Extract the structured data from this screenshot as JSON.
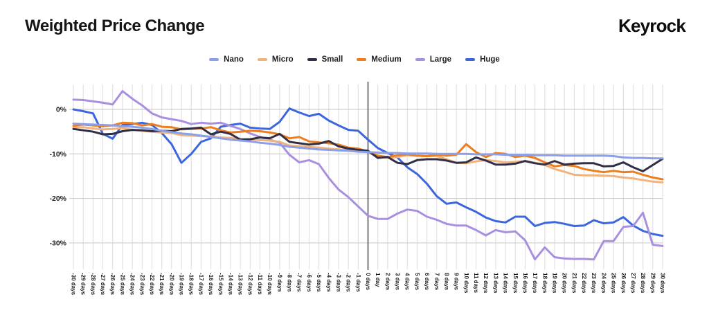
{
  "header": {
    "title": "Weighted Price Change",
    "brand": "Keyrock"
  },
  "legend": [
    {
      "label": "Nano",
      "color": "#8ba0e8"
    },
    {
      "label": "Micro",
      "color": "#f2b27c"
    },
    {
      "label": "Small",
      "color": "#312f46"
    },
    {
      "label": "Medium",
      "color": "#ee7d1e"
    },
    {
      "label": "Large",
      "color": "#a98fe0"
    },
    {
      "label": "Huge",
      "color": "#3c66dd"
    }
  ],
  "chart_data": {
    "type": "line",
    "title": "Weighted Price Change",
    "xlabel": "",
    "ylabel": "",
    "legend_position": "top-center",
    "grid": "vertical line per day; horizontal lines at y ticks",
    "y_ticks": [
      "0%",
      "-10%",
      "-20%",
      "-30%"
    ],
    "ylim": [
      -35.5,
      5.7
    ],
    "zero_marker": "0 days",
    "categories": [
      "-30 days",
      "-29 days",
      "-28 days",
      "-27 days",
      "-26 days",
      "-25 days",
      "-24 days",
      "-23 days",
      "-22 days",
      "-21 days",
      "-20 days",
      "-19 days",
      "-18 days",
      "-17 days",
      "-16 days",
      "-15 days",
      "-14 days",
      "-13 days",
      "-12 days",
      "-11 days",
      "-10 days",
      "-9 days",
      "-8 days",
      "-7 days",
      "-6 days",
      "-5 days",
      "-4 days",
      "-3 days",
      "-2 days",
      "-1 days",
      "0 days",
      "1 day",
      "2 days",
      "3 days",
      "4 days",
      "5 days",
      "6 days",
      "7 days",
      "8 days",
      "9 days",
      "10 days",
      "11 days",
      "12 days",
      "13 days",
      "14 days",
      "15 days",
      "16 days",
      "17 days",
      "18 days",
      "19 days",
      "20 days",
      "21 days",
      "22 days",
      "23 days",
      "24 days",
      "25 days",
      "26 days",
      "27 days",
      "28 days",
      "29 days",
      "30 days"
    ],
    "series": [
      {
        "name": "Huge",
        "color": "#3c66dd",
        "values": [
          0.0,
          -0.4,
          -0.9,
          -5.5,
          -6.6,
          -3.5,
          -3.3,
          -3.0,
          -3.5,
          -5.3,
          -7.8,
          -12.0,
          -10.0,
          -7.3,
          -6.5,
          -3.9,
          -3.5,
          -3.2,
          -4.1,
          -4.3,
          -4.4,
          -2.8,
          0.2,
          -0.7,
          -1.5,
          -1.0,
          -2.5,
          -3.6,
          -4.6,
          -4.8,
          -6.8,
          -8.7,
          -9.8,
          -10.8,
          -13.0,
          -14.5,
          -16.7,
          -19.5,
          -21.2,
          -20.9,
          -22.0,
          -23.0,
          -24.3,
          -25.1,
          -25.4,
          -24.1,
          -24.1,
          -26.2,
          -25.5,
          -25.3,
          -25.7,
          -26.2,
          -26.1,
          -24.9,
          -25.6,
          -25.4,
          -24.2,
          -26.1,
          -27.3,
          -28.0,
          -28.4
        ]
      },
      {
        "name": "Large",
        "color": "#a98fe0",
        "values": [
          2.2,
          2.1,
          1.8,
          1.5,
          1.1,
          4.1,
          2.4,
          0.9,
          -0.9,
          -1.8,
          -2.2,
          -2.6,
          -3.3,
          -3.0,
          -3.2,
          -3.0,
          -3.7,
          -4.4,
          -5.4,
          -6.2,
          -6.8,
          -7.5,
          -10.2,
          -11.9,
          -11.4,
          -12.3,
          -15.4,
          -18.0,
          -19.7,
          -21.8,
          -23.9,
          -24.6,
          -24.6,
          -23.4,
          -22.5,
          -22.8,
          -24.1,
          -24.8,
          -25.7,
          -26.1,
          -26.1,
          -27.1,
          -28.3,
          -27.1,
          -27.6,
          -27.4,
          -29.4,
          -33.7,
          -31.0,
          -33.2,
          -33.5,
          -33.6,
          -33.6,
          -33.7,
          -29.6,
          -29.6,
          -26.4,
          -26.2,
          -23.2,
          -30.4,
          -30.7
        ]
      },
      {
        "name": "Micro",
        "color": "#f2b27c",
        "values": [
          -4.1,
          -4.0,
          -4.3,
          -4.5,
          -4.4,
          -4.2,
          -4.6,
          -4.8,
          -5.0,
          -5.2,
          -5.3,
          -5.8,
          -5.9,
          -6.0,
          -6.1,
          -6.3,
          -6.4,
          -6.6,
          -6.7,
          -6.9,
          -7.0,
          -7.3,
          -8.1,
          -8.3,
          -8.4,
          -8.6,
          -8.8,
          -9.0,
          -9.1,
          -9.3,
          -9.6,
          -10.7,
          -10.9,
          -10.7,
          -10.3,
          -10.4,
          -10.5,
          -10.5,
          -11.2,
          -12.0,
          -12.1,
          -11.7,
          -11.4,
          -11.6,
          -11.9,
          -11.8,
          -11.6,
          -12.0,
          -12.5,
          -13.4,
          -14.0,
          -14.7,
          -14.8,
          -14.8,
          -14.9,
          -15.0,
          -15.3,
          -15.5,
          -15.9,
          -16.2,
          -16.4
        ]
      },
      {
        "name": "Medium",
        "color": "#ee7d1e",
        "values": [
          -3.7,
          -3.4,
          -3.6,
          -3.8,
          -3.6,
          -3.0,
          -3.1,
          -3.6,
          -3.3,
          -3.9,
          -4.0,
          -4.5,
          -4.4,
          -4.3,
          -4.0,
          -4.7,
          -5.2,
          -5.0,
          -4.8,
          -4.9,
          -5.2,
          -5.6,
          -6.5,
          -6.2,
          -7.2,
          -7.4,
          -7.6,
          -7.9,
          -8.6,
          -8.8,
          -9.5,
          -10.4,
          -10.7,
          -10.3,
          -10.1,
          -10.4,
          -10.5,
          -10.2,
          -10.4,
          -10.2,
          -7.8,
          -9.6,
          -10.7,
          -9.8,
          -10.0,
          -10.7,
          -10.4,
          -10.9,
          -11.9,
          -12.8,
          -12.5,
          -12.7,
          -13.4,
          -13.8,
          -14.1,
          -13.8,
          -14.1,
          -14.0,
          -14.7,
          -15.3,
          -15.7
        ]
      },
      {
        "name": "Small",
        "color": "#312f46",
        "values": [
          -4.4,
          -4.7,
          -5.0,
          -5.6,
          -5.5,
          -4.9,
          -4.6,
          -4.7,
          -4.9,
          -4.8,
          -4.9,
          -4.4,
          -4.3,
          -4.1,
          -5.6,
          -5.0,
          -5.5,
          -6.8,
          -6.7,
          -6.3,
          -6.5,
          -5.5,
          -7.3,
          -7.6,
          -7.9,
          -7.7,
          -7.1,
          -8.3,
          -8.8,
          -9.1,
          -9.3,
          -10.9,
          -10.7,
          -12.0,
          -12.3,
          -11.4,
          -11.2,
          -11.2,
          -11.5,
          -12.0,
          -11.9,
          -10.8,
          -11.5,
          -12.4,
          -12.4,
          -12.2,
          -11.6,
          -12.1,
          -12.4,
          -11.6,
          -12.4,
          -12.2,
          -12.1,
          -12.1,
          -12.8,
          -12.7,
          -11.9,
          -13.0,
          -13.9,
          -12.5,
          -11.1
        ]
      },
      {
        "name": "Nano",
        "color": "#8ba0e8",
        "values": [
          -3.2,
          -3.3,
          -3.4,
          -3.5,
          -3.6,
          -3.8,
          -3.9,
          -4.1,
          -4.4,
          -4.8,
          -5.1,
          -5.4,
          -5.6,
          -5.9,
          -6.2,
          -6.5,
          -6.8,
          -7.0,
          -7.2,
          -7.5,
          -7.7,
          -8.0,
          -8.4,
          -8.6,
          -8.8,
          -9.0,
          -9.1,
          -9.2,
          -9.3,
          -9.5,
          -9.6,
          -9.7,
          -9.8,
          -9.8,
          -9.9,
          -9.9,
          -9.9,
          -10.0,
          -10.0,
          -10.0,
          -10.0,
          -10.1,
          -10.1,
          -10.1,
          -10.2,
          -10.2,
          -10.2,
          -10.3,
          -10.3,
          -10.3,
          -10.4,
          -10.4,
          -10.4,
          -10.4,
          -10.4,
          -10.5,
          -10.8,
          -10.9,
          -10.9,
          -11.0,
          -11.0
        ]
      }
    ],
    "colors": {
      "grid_vertical": "#dcdcdc",
      "grid_horizontal": "#c6c6c6",
      "zero_line": "#54545c",
      "axis_text": "#1b1b1b"
    }
  }
}
